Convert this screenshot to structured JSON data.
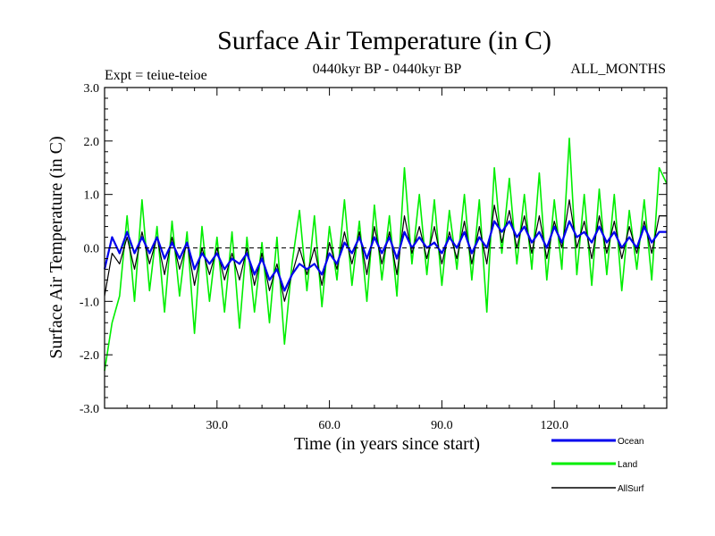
{
  "chart_data": {
    "type": "line",
    "title": "Surface Air Temperature (in C)",
    "subtitle_left": "Expt = teiue-teioe",
    "subtitle_center": "0440kyr BP - 0440kyr BP",
    "subtitle_right": "ALL_MONTHS",
    "xlabel": "Time (in years since start)",
    "ylabel": "Surface Air Temperature (in C)",
    "xlim": [
      0,
      150
    ],
    "ylim": [
      -3.0,
      3.0
    ],
    "xticks": [
      30,
      60,
      90,
      120
    ],
    "xtick_labels": [
      "30.0",
      "60.0",
      "90.0",
      "120.0"
    ],
    "yticks": [
      -3,
      -2,
      -1,
      0,
      1,
      2,
      3
    ],
    "ytick_labels": [
      "-3.0",
      "-2.0",
      "-1.0",
      "0.0",
      "1.0",
      "2.0",
      "3.0"
    ],
    "zero_line": "dashed",
    "legend_placement": "bottom-right, below plot",
    "series": [
      {
        "name": "Land",
        "color": "#00ee00",
        "x": [
          0,
          2,
          4,
          6,
          8,
          10,
          12,
          14,
          16,
          18,
          20,
          22,
          24,
          26,
          28,
          30,
          32,
          34,
          36,
          38,
          40,
          42,
          44,
          46,
          48,
          50,
          52,
          54,
          56,
          58,
          60,
          62,
          64,
          66,
          68,
          70,
          72,
          74,
          76,
          78,
          80,
          82,
          84,
          86,
          88,
          90,
          92,
          94,
          96,
          98,
          100,
          102,
          104,
          106,
          108,
          110,
          112,
          114,
          116,
          118,
          120,
          122,
          124,
          126,
          128,
          130,
          132,
          134,
          136,
          138,
          140,
          142,
          144,
          146,
          148,
          150
        ],
        "values": [
          -2.3,
          -1.4,
          -0.9,
          0.6,
          -1.0,
          0.9,
          -0.8,
          0.4,
          -1.2,
          0.5,
          -0.9,
          0.3,
          -1.6,
          0.4,
          -1.0,
          0.2,
          -1.2,
          0.3,
          -1.5,
          0.2,
          -1.2,
          0.1,
          -1.4,
          0.2,
          -1.8,
          -0.3,
          0.7,
          -0.8,
          0.6,
          -1.1,
          0.4,
          -0.6,
          0.9,
          -0.7,
          0.5,
          -1.0,
          0.8,
          -0.6,
          0.6,
          -0.9,
          1.5,
          -0.3,
          1.0,
          -0.5,
          0.9,
          -0.7,
          0.7,
          -0.4,
          1.0,
          -0.6,
          0.9,
          -1.2,
          1.5,
          -0.1,
          1.3,
          -0.3,
          1.0,
          -0.4,
          1.4,
          -0.6,
          0.9,
          -0.4,
          2.05,
          -0.5,
          1.0,
          -0.7,
          1.1,
          -0.5,
          1.0,
          -0.8,
          0.7,
          -0.4,
          0.9,
          -0.6,
          1.5,
          1.2
        ]
      },
      {
        "name": "Ocean",
        "color": "#0000ee",
        "x": [
          0,
          2,
          4,
          6,
          8,
          10,
          12,
          14,
          16,
          18,
          20,
          22,
          24,
          26,
          28,
          30,
          32,
          34,
          36,
          38,
          40,
          42,
          44,
          46,
          48,
          50,
          52,
          54,
          56,
          58,
          60,
          62,
          64,
          66,
          68,
          70,
          72,
          74,
          76,
          78,
          80,
          82,
          84,
          86,
          88,
          90,
          92,
          94,
          96,
          98,
          100,
          102,
          104,
          106,
          108,
          110,
          112,
          114,
          116,
          118,
          120,
          122,
          124,
          126,
          128,
          130,
          132,
          134,
          136,
          138,
          140,
          142,
          144,
          146,
          148,
          150
        ],
        "values": [
          -0.4,
          0.2,
          -0.1,
          0.3,
          -0.1,
          0.2,
          -0.1,
          0.2,
          -0.2,
          0.1,
          -0.2,
          0.1,
          -0.4,
          -0.1,
          -0.3,
          -0.1,
          -0.4,
          -0.2,
          -0.3,
          -0.1,
          -0.5,
          -0.2,
          -0.6,
          -0.4,
          -0.8,
          -0.5,
          -0.3,
          -0.4,
          -0.3,
          -0.5,
          -0.1,
          -0.3,
          0.1,
          -0.1,
          0.2,
          -0.2,
          0.2,
          -0.1,
          0.2,
          -0.2,
          0.3,
          0.0,
          0.2,
          0.0,
          0.1,
          -0.1,
          0.2,
          0.0,
          0.3,
          -0.1,
          0.2,
          0.0,
          0.5,
          0.3,
          0.5,
          0.2,
          0.4,
          0.1,
          0.3,
          0.0,
          0.4,
          0.1,
          0.5,
          0.2,
          0.3,
          0.1,
          0.4,
          0.1,
          0.3,
          0.0,
          0.2,
          0.0,
          0.4,
          0.1,
          0.3,
          0.3
        ]
      },
      {
        "name": "AllSurf",
        "color": "#000000",
        "x": [
          0,
          2,
          4,
          6,
          8,
          10,
          12,
          14,
          16,
          18,
          20,
          22,
          24,
          26,
          28,
          30,
          32,
          34,
          36,
          38,
          40,
          42,
          44,
          46,
          48,
          50,
          52,
          54,
          56,
          58,
          60,
          62,
          64,
          66,
          68,
          70,
          72,
          74,
          76,
          78,
          80,
          82,
          84,
          86,
          88,
          90,
          92,
          94,
          96,
          98,
          100,
          102,
          104,
          106,
          108,
          110,
          112,
          114,
          116,
          118,
          120,
          122,
          124,
          126,
          128,
          130,
          132,
          134,
          136,
          138,
          140,
          142,
          144,
          146,
          148,
          150
        ],
        "values": [
          -0.9,
          -0.1,
          -0.3,
          0.2,
          -0.4,
          0.3,
          -0.3,
          0.2,
          -0.5,
          0.2,
          -0.4,
          0.1,
          -0.7,
          0.0,
          -0.5,
          0.0,
          -0.6,
          -0.1,
          -0.6,
          0.0,
          -0.7,
          -0.1,
          -0.8,
          -0.3,
          -1.0,
          -0.5,
          0.0,
          -0.5,
          0.0,
          -0.7,
          0.1,
          -0.4,
          0.3,
          -0.3,
          0.3,
          -0.5,
          0.4,
          -0.3,
          0.3,
          -0.5,
          0.6,
          -0.1,
          0.4,
          -0.2,
          0.4,
          -0.3,
          0.3,
          -0.2,
          0.5,
          -0.3,
          0.4,
          -0.3,
          0.8,
          0.1,
          0.7,
          0.0,
          0.6,
          -0.1,
          0.6,
          -0.2,
          0.5,
          0.0,
          0.9,
          0.0,
          0.5,
          -0.2,
          0.6,
          -0.1,
          0.5,
          -0.2,
          0.4,
          -0.1,
          0.5,
          -0.1,
          0.6,
          0.6
        ]
      }
    ]
  }
}
